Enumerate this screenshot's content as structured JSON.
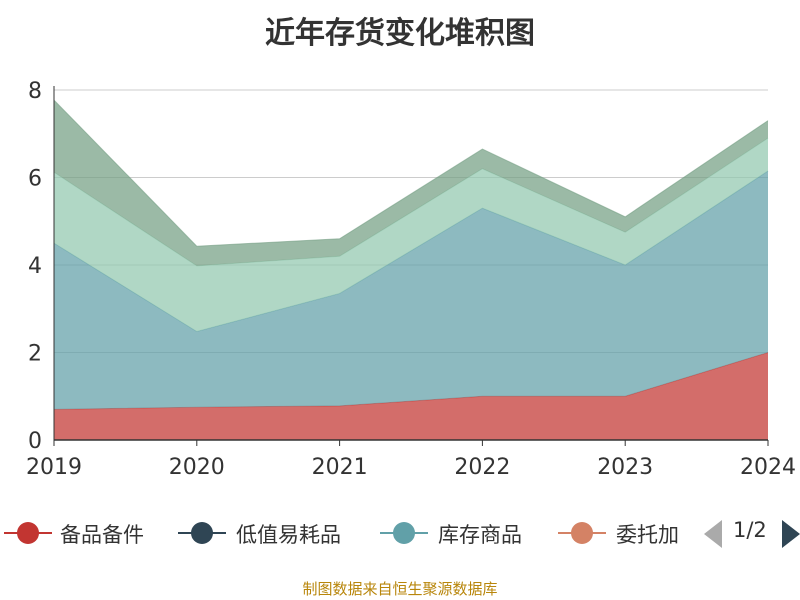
{
  "chart_data": {
    "type": "area",
    "title": "近年存货变化堆积图",
    "categories": [
      "2019",
      "2020",
      "2021",
      "2022",
      "2023",
      "2024"
    ],
    "ylim": [
      0,
      8
    ],
    "yticks": [
      "0",
      "2",
      "4",
      "6",
      "8"
    ],
    "series": [
      {
        "name": "备品备件",
        "color": "#c23531",
        "values": [
          0.7,
          0.75,
          0.78,
          1.0,
          1.0,
          2.0
        ]
      },
      {
        "name": "低值易耗品",
        "color": "#2f4554",
        "values": [
          0.0,
          0.0,
          0.0,
          0.0,
          0.0,
          0.0
        ]
      },
      {
        "name": "库存商品",
        "color": "#61a0a8",
        "values": [
          3.8,
          1.73,
          2.57,
          4.3,
          3.0,
          4.15
        ]
      },
      {
        "name": "委托加工物资",
        "color": "#d48265",
        "values": [
          0.0,
          0.0,
          0.0,
          0.0,
          0.0,
          0.0
        ]
      },
      {
        "name": "",
        "color": "#91c7ae",
        "values": [
          1.62,
          1.5,
          0.85,
          0.9,
          0.75,
          0.75
        ]
      },
      {
        "name": "",
        "color": "#749f83",
        "values": [
          1.65,
          0.45,
          0.4,
          0.45,
          0.35,
          0.4
        ]
      }
    ],
    "grid": true,
    "legend_position": "bottom"
  },
  "legend": {
    "items": [
      {
        "label": "备品备件",
        "color": "#c23531"
      },
      {
        "label": "低值易耗品",
        "color": "#2f4554"
      },
      {
        "label": "库存商品",
        "color": "#61a0a8"
      },
      {
        "label": "委托加",
        "color": "#d48265"
      }
    ],
    "page": "1/2"
  },
  "source": "制图数据来自恒生聚源数据库"
}
